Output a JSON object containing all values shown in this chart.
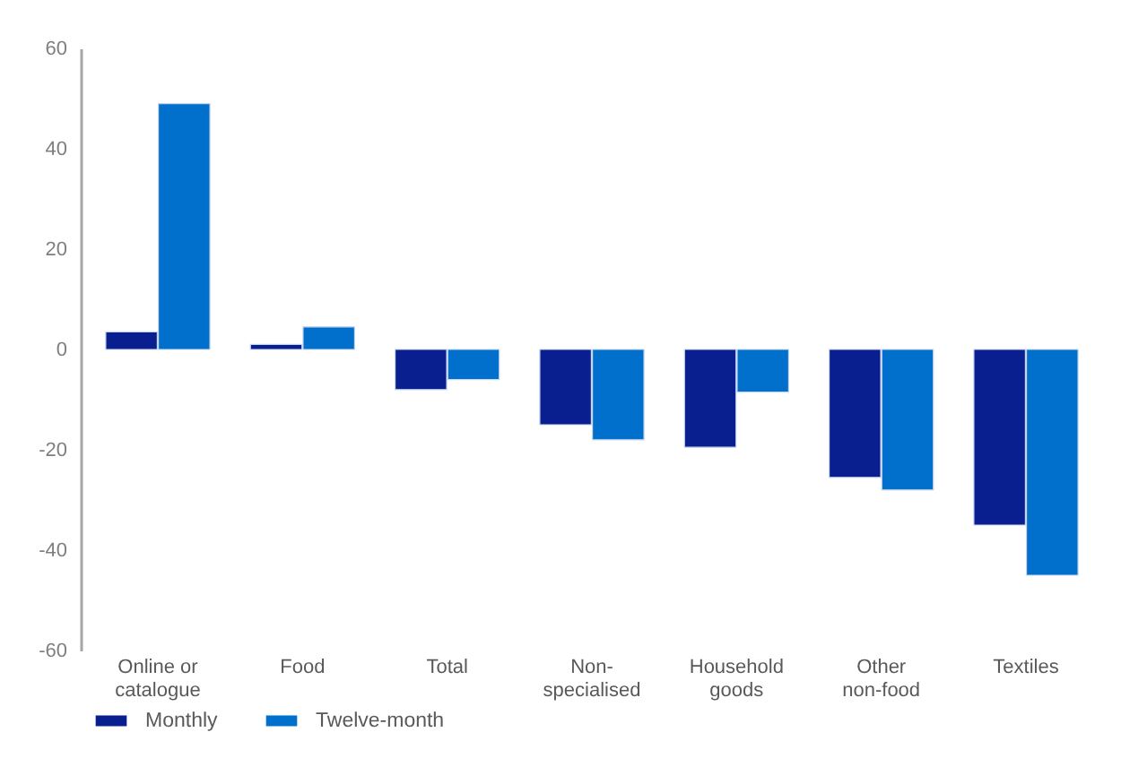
{
  "chart_data": {
    "type": "bar",
    "categories": [
      "Online or\ncatalogue",
      "Food",
      "Total",
      "Non-\nspecialised",
      "Household\ngoods",
      "Other\nnon-food",
      "Textiles"
    ],
    "series": [
      {
        "name": "Monthly",
        "color": "#0a1f8f",
        "values": [
          3.5,
          1,
          -8,
          -15,
          -19.5,
          -25.5,
          -35
        ]
      },
      {
        "name": "Twelve-month",
        "color": "#0070cc",
        "values": [
          49,
          4.5,
          -6,
          -18,
          -8.5,
          -28,
          -45
        ]
      }
    ],
    "ylim": [
      -60,
      60
    ],
    "yticks": [
      -60,
      -40,
      -20,
      0,
      20,
      40,
      60
    ],
    "legend": "bottom left"
  }
}
